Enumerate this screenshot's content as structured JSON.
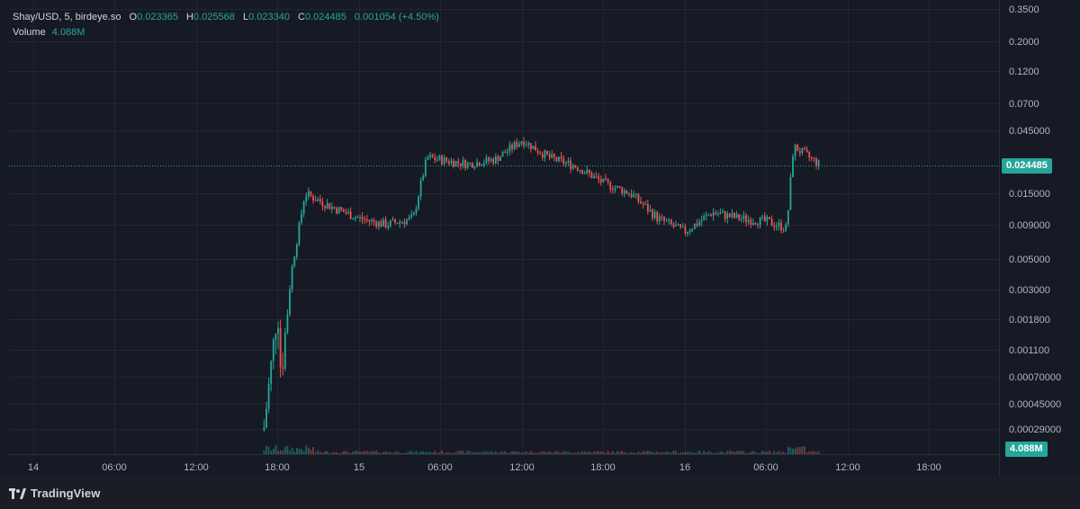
{
  "legend": {
    "symbol": "Shay/USD, 5, birdeye.so",
    "open_label": "O",
    "open": "0.023365",
    "high_label": "H",
    "high": "0.025568",
    "low_label": "L",
    "low": "0.023340",
    "close_label": "C",
    "close": "0.024485",
    "change": "0.001054 (+4.50%)",
    "volume_label": "Volume",
    "volume": "4.088M"
  },
  "price_axis": {
    "labels": [
      "0.3500",
      "0.2000",
      "0.1200",
      "0.0700",
      "0.045000",
      "0.015000",
      "0.009000",
      "0.005000",
      "0.003000",
      "0.001800",
      "0.001100",
      "0.00070000",
      "0.00045000",
      "0.00029000"
    ],
    "last_price": "0.024485",
    "volume_badge": "4.088M"
  },
  "time_axis": {
    "labels": [
      "14",
      "06:00",
      "12:00",
      "18:00",
      "15",
      "06:00",
      "12:00",
      "18:00",
      "16",
      "06:00",
      "12:00",
      "18:00"
    ]
  },
  "branding": {
    "name": "TradingView"
  },
  "colors": {
    "up": "#26a69a",
    "down": "#ef5350",
    "background": "#161a25",
    "grid": "#232632",
    "last_price_line": "#26a69a"
  },
  "chart_data": {
    "type": "candlestick",
    "title": "Shay/USD, 5, birdeye.so",
    "interval": "5",
    "price_scale": "log",
    "x_range": [
      "14",
      "16 18:00+"
    ],
    "series": [
      {
        "name": "price",
        "approx_path": [
          {
            "t": "14 17:00",
            "close": 0.0003
          },
          {
            "t": "14 18:00",
            "close": 0.0022
          },
          {
            "t": "14 18:15",
            "close": 0.0007
          },
          {
            "t": "14 19:00",
            "close": 0.004
          },
          {
            "t": "14 20:00",
            "close": 0.015
          },
          {
            "t": "14 22:00",
            "close": 0.012
          },
          {
            "t": "15 00:00",
            "close": 0.01
          },
          {
            "t": "15 02:00",
            "close": 0.009
          },
          {
            "t": "15 04:00",
            "close": 0.01
          },
          {
            "t": "15 05:00",
            "close": 0.028
          },
          {
            "t": "15 08:00",
            "close": 0.025
          },
          {
            "t": "15 10:00",
            "close": 0.027
          },
          {
            "t": "15 12:00",
            "close": 0.038
          },
          {
            "t": "15 14:00",
            "close": 0.028
          },
          {
            "t": "15 16:00",
            "close": 0.024
          },
          {
            "t": "15 18:00",
            "close": 0.018
          },
          {
            "t": "15 20:00",
            "close": 0.015
          },
          {
            "t": "15 22:00",
            "close": 0.01
          },
          {
            "t": "16 00:00",
            "close": 0.008
          },
          {
            "t": "16 02:00",
            "close": 0.011
          },
          {
            "t": "16 04:00",
            "close": 0.01
          },
          {
            "t": "16 06:00",
            "close": 0.0095
          },
          {
            "t": "16 07:30",
            "close": 0.0085
          },
          {
            "t": "16 08:00",
            "close": 0.034
          },
          {
            "t": "16 10:00",
            "close": 0.024485
          }
        ]
      }
    ],
    "volume": {
      "last": "4.088M"
    },
    "last_price": 0.024485
  }
}
